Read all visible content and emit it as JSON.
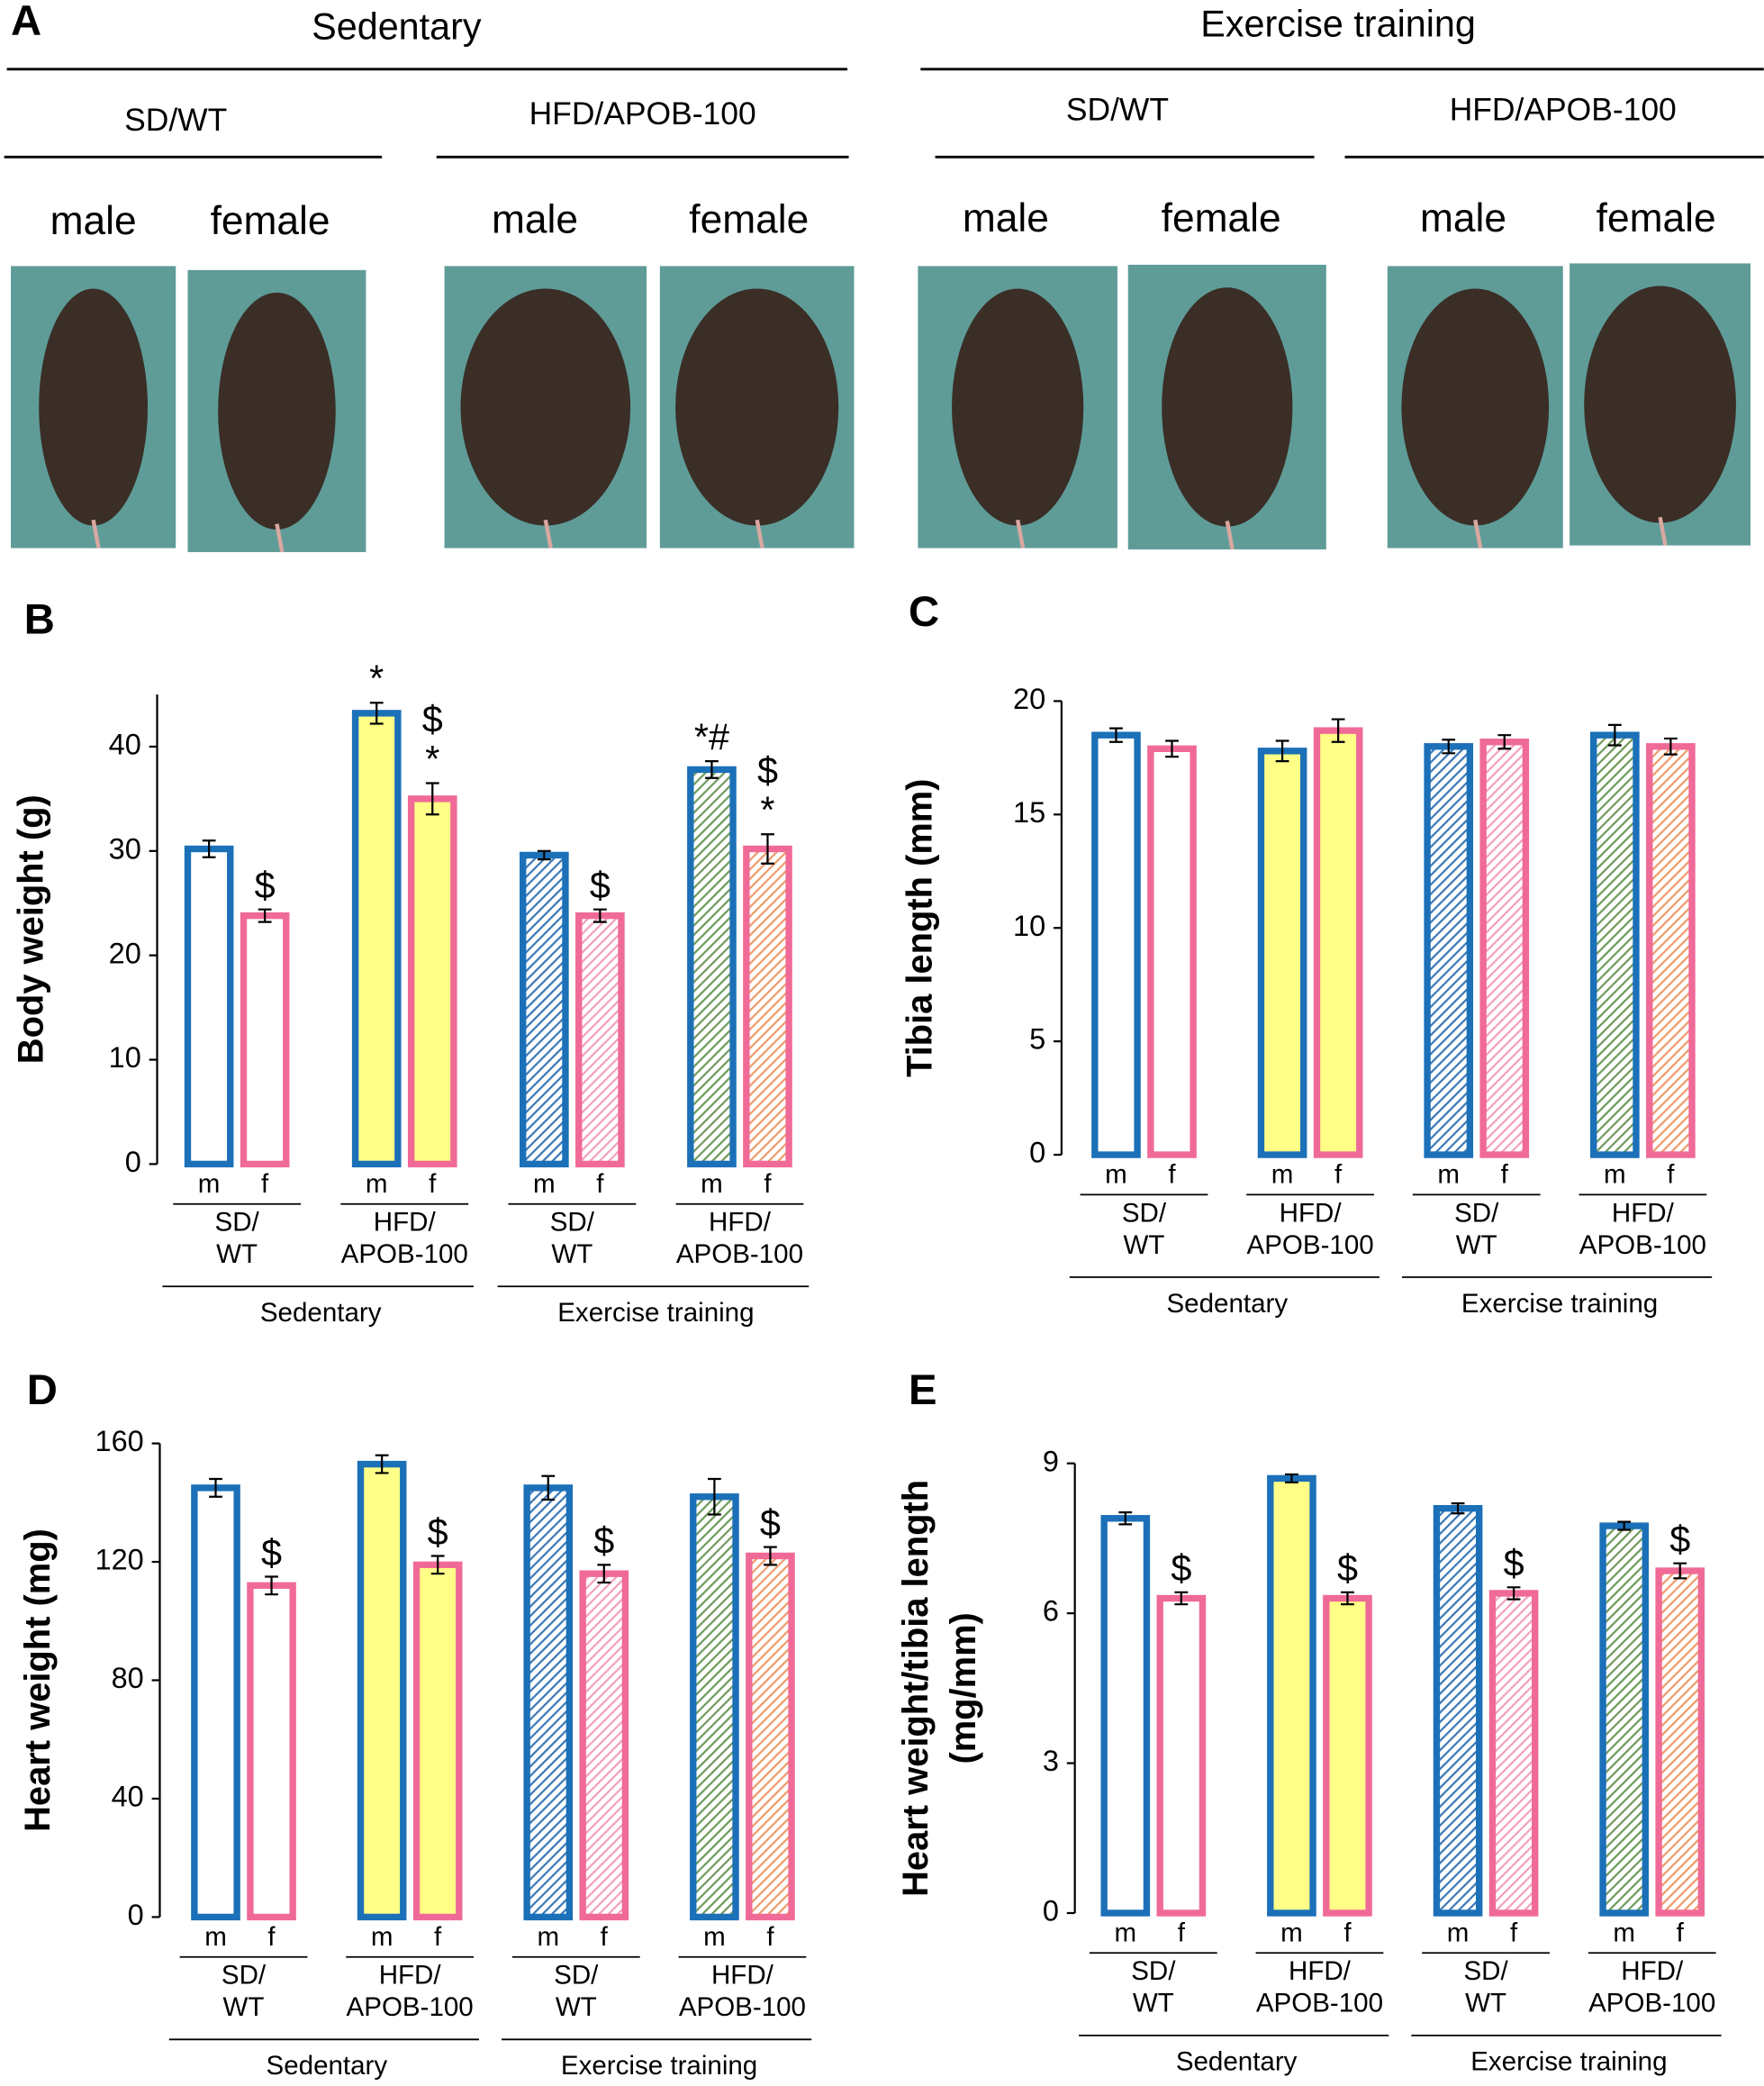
{
  "photo_panel": {
    "label": "A",
    "conditions": [
      {
        "name": "Sedentary",
        "groups": [
          {
            "name": "SD/WT",
            "sexes": [
              "male",
              "female"
            ]
          },
          {
            "name": "HFD/APOB-100",
            "sexes": [
              "male",
              "female"
            ]
          }
        ]
      },
      {
        "name": "Exercise training",
        "groups": [
          {
            "name": "SD/WT",
            "sexes": [
              "male",
              "female"
            ]
          },
          {
            "name": "HFD/APOB-100",
            "sexes": [
              "male",
              "female"
            ]
          }
        ]
      }
    ]
  },
  "chart_data": [
    {
      "type": "bar",
      "panel_label": "B",
      "y_label": [
        "Body weight (g)"
      ],
      "categories": [
        "m",
        "f",
        "m",
        "f",
        "m",
        "f",
        "m",
        "f"
      ],
      "values": [
        30.2,
        23.8,
        43.2,
        35.0,
        29.6,
        23.8,
        37.8,
        30.2
      ],
      "errors": [
        0.8,
        0.6,
        1.0,
        1.5,
        0.4,
        0.6,
        0.8,
        1.4
      ],
      "annotations": [
        null,
        [
          "$"
        ],
        [
          "*"
        ],
        [
          "$",
          "*"
        ],
        null,
        [
          "$"
        ],
        [
          "*#"
        ],
        [
          "$",
          "*"
        ]
      ],
      "groups": [
        [
          "SD/",
          "WT"
        ],
        [
          "HFD/",
          "APOB-100"
        ],
        [
          "SD/",
          "WT"
        ],
        [
          "HFD/",
          "APOB-100"
        ]
      ],
      "conditions": [
        "Sedentary",
        "Exercise training"
      ],
      "edge_colors": [
        "#1b70b8",
        "#f06a98",
        "#1b70b8",
        "#f06a98",
        "#1b70b8",
        "#f06a98",
        "#1b70b8",
        "#f06a98"
      ],
      "fill_colors": [
        "#ffffff",
        "#ffffff",
        "#ffff88",
        "#ffff88",
        "#3a78b8",
        "#f4a0bc",
        "#6e9a5c",
        "#f09a6a"
      ],
      "hatched": [
        false,
        false,
        false,
        false,
        true,
        true,
        true,
        true
      ],
      "ylim": [
        0,
        45
      ],
      "yticks": [
        0,
        10,
        20,
        30,
        40
      ]
    },
    {
      "type": "bar",
      "panel_label": "C",
      "y_label": [
        "Tibia length (mm)"
      ],
      "categories": [
        "m",
        "f",
        "m",
        "f",
        "m",
        "f",
        "m",
        "f"
      ],
      "values": [
        18.5,
        17.9,
        17.8,
        18.7,
        18.0,
        18.2,
        18.5,
        18.0
      ],
      "errors": [
        0.3,
        0.35,
        0.45,
        0.5,
        0.3,
        0.3,
        0.45,
        0.35
      ],
      "annotations": [
        null,
        null,
        null,
        null,
        null,
        null,
        null,
        null
      ],
      "groups": [
        [
          "SD/",
          "WT"
        ],
        [
          "HFD/",
          "APOB-100"
        ],
        [
          "SD/",
          "WT"
        ],
        [
          "HFD/",
          "APOB-100"
        ]
      ],
      "conditions": [
        "Sedentary",
        "Exercise training"
      ],
      "edge_colors": [
        "#1b70b8",
        "#f06a98",
        "#1b70b8",
        "#f06a98",
        "#1b70b8",
        "#f06a98",
        "#1b70b8",
        "#f06a98"
      ],
      "fill_colors": [
        "#ffffff",
        "#ffffff",
        "#ffff88",
        "#ffff88",
        "#3a78b8",
        "#f4a0bc",
        "#6e9a5c",
        "#f09a6a"
      ],
      "hatched": [
        false,
        false,
        false,
        false,
        true,
        true,
        true,
        true
      ],
      "ylim": [
        0,
        20
      ],
      "yticks": [
        0,
        5,
        10,
        15,
        20
      ]
    },
    {
      "type": "bar",
      "panel_label": "D",
      "y_label": [
        "Heart weight (mg)"
      ],
      "categories": [
        "m",
        "f",
        "m",
        "f",
        "m",
        "f",
        "m",
        "f"
      ],
      "values": [
        145,
        112,
        153,
        119,
        145,
        116,
        142,
        122
      ],
      "errors": [
        3,
        3,
        3,
        3,
        4,
        3,
        6,
        3
      ],
      "annotations": [
        null,
        [
          "$"
        ],
        null,
        [
          "$"
        ],
        null,
        [
          "$"
        ],
        null,
        [
          "$"
        ]
      ],
      "groups": [
        [
          "SD/",
          "WT"
        ],
        [
          "HFD/",
          "APOB-100"
        ],
        [
          "SD/",
          "WT"
        ],
        [
          "HFD/",
          "APOB-100"
        ]
      ],
      "conditions": [
        "Sedentary",
        "Exercise training"
      ],
      "edge_colors": [
        "#1b70b8",
        "#f06a98",
        "#1b70b8",
        "#f06a98",
        "#1b70b8",
        "#f06a98",
        "#1b70b8",
        "#f06a98"
      ],
      "fill_colors": [
        "#ffffff",
        "#ffffff",
        "#ffff88",
        "#ffff88",
        "#3a78b8",
        "#f4a0bc",
        "#6e9a5c",
        "#f09a6a"
      ],
      "hatched": [
        false,
        false,
        false,
        false,
        true,
        true,
        true,
        true
      ],
      "ylim": [
        0,
        160
      ],
      "yticks": [
        0,
        40,
        80,
        120,
        160
      ]
    },
    {
      "type": "bar",
      "panel_label": "E",
      "y_label": [
        "Heart weight/tibia length",
        "(mg/mm)"
      ],
      "categories": [
        "m",
        "f",
        "m",
        "f",
        "m",
        "f",
        "m",
        "f"
      ],
      "values": [
        7.9,
        6.3,
        8.7,
        6.3,
        8.1,
        6.4,
        7.75,
        6.85
      ],
      "errors": [
        0.12,
        0.12,
        0.08,
        0.12,
        0.1,
        0.12,
        0.08,
        0.15
      ],
      "annotations": [
        null,
        [
          "$"
        ],
        null,
        [
          "$"
        ],
        null,
        [
          "$"
        ],
        null,
        [
          "$"
        ]
      ],
      "groups": [
        [
          "SD/",
          "WT"
        ],
        [
          "HFD/",
          "APOB-100"
        ],
        [
          "SD/",
          "WT"
        ],
        [
          "HFD/",
          "APOB-100"
        ]
      ],
      "conditions": [
        "Sedentary",
        "Exercise training"
      ],
      "edge_colors": [
        "#1b70b8",
        "#f06a98",
        "#1b70b8",
        "#f06a98",
        "#1b70b8",
        "#f06a98",
        "#1b70b8",
        "#f06a98"
      ],
      "fill_colors": [
        "#ffffff",
        "#ffffff",
        "#ffff88",
        "#ffff88",
        "#3a78b8",
        "#f4a0bc",
        "#6e9a5c",
        "#f09a6a"
      ],
      "hatched": [
        false,
        false,
        false,
        false,
        true,
        true,
        true,
        true
      ],
      "ylim": [
        0,
        9
      ],
      "yticks": [
        0,
        3,
        6,
        9
      ]
    }
  ]
}
